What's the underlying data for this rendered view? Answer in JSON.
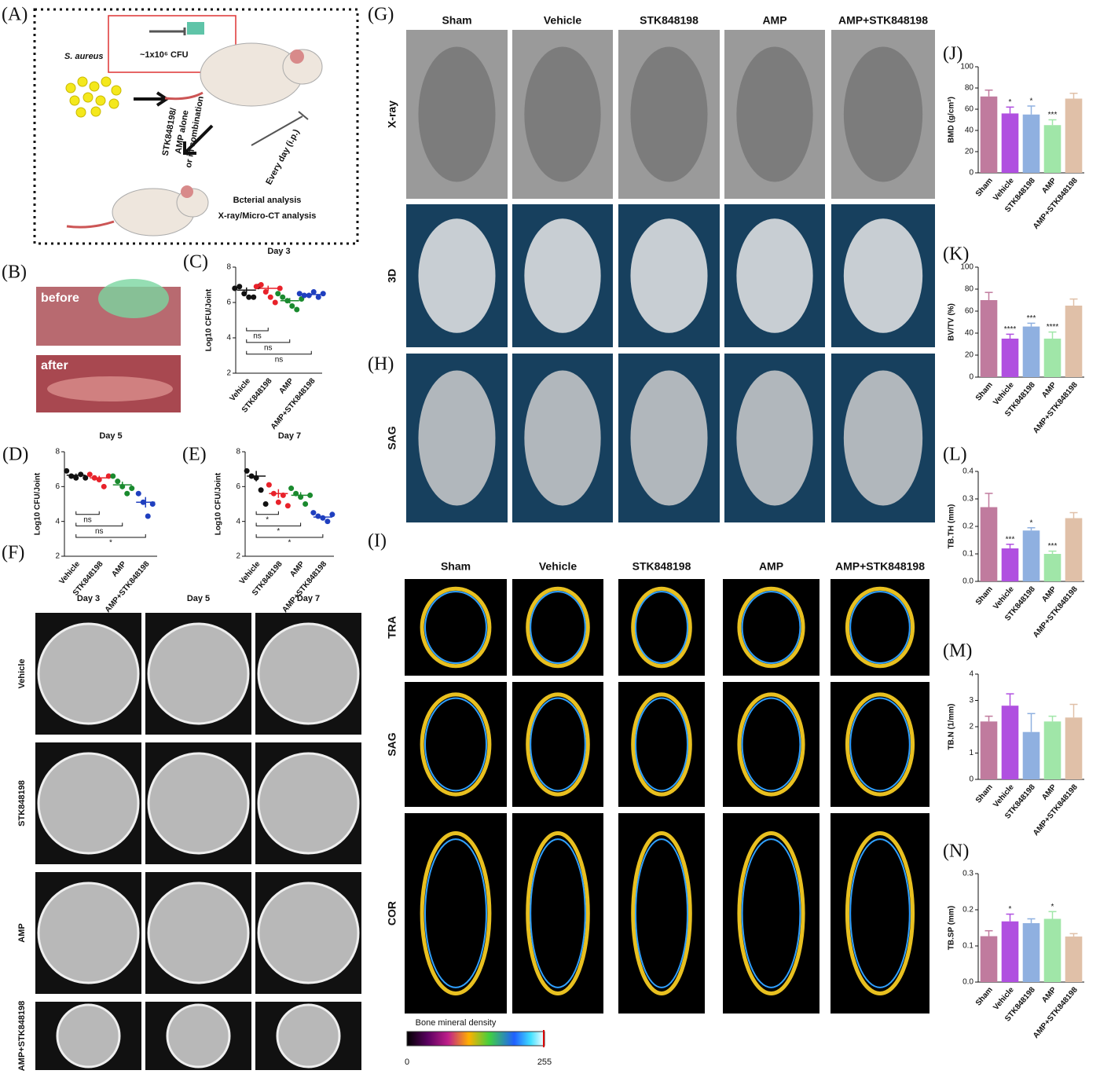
{
  "schematic": {
    "label": "(A)",
    "organism": "S. aureus",
    "dose": "~1x10⁶ CFU",
    "treatment": [
      "STK848198/",
      "AMP alone",
      "or in combination"
    ],
    "schedule": "Every day (i.p.)",
    "analysis": [
      "Bcterial analysis",
      "X-ray/Micro-CT analysis"
    ]
  },
  "wound_photos": {
    "label": "(B)",
    "photos": [
      "before",
      "after"
    ]
  },
  "plates": {
    "label": "(F)",
    "columns": [
      "Day 3",
      "Day 5",
      "Day 7"
    ],
    "rows": [
      "Vehicle",
      "STK848198",
      "AMP",
      "AMP+STK848198"
    ]
  },
  "imaging_g": {
    "labels": [
      "(G)",
      "(H)"
    ],
    "columns": [
      "Sham",
      "Vehicle",
      "STK848198",
      "AMP",
      "AMP+STK848198"
    ],
    "rows": [
      "X-ray",
      "3D",
      "SAG"
    ]
  },
  "imaging_i": {
    "label": "(I)",
    "columns": [
      "Sham",
      "Vehicle",
      "STK848198",
      "AMP",
      "AMP+STK848198"
    ],
    "rows": [
      "TRA",
      "SAG",
      "COR"
    ],
    "colorbar": {
      "title": "Bone mineral density",
      "min": 0,
      "max": 255
    }
  },
  "chart_data": [
    {
      "type": "dot",
      "panel": "(C)",
      "title": "Day 3",
      "ylabel": "Log10 CFU/Joint",
      "categories": [
        "Vehicle",
        "STK848198",
        "AMP",
        "AMP+STK848198"
      ],
      "colors": [
        "#111111",
        "#e8222a",
        "#1a8a2e",
        "#1f3fbf"
      ],
      "points": [
        [
          6.8,
          6.9,
          6.5,
          6.3,
          6.3,
          6.9
        ],
        [
          6.9,
          7.0,
          6.6,
          6.3,
          6.0,
          6.8
        ],
        [
          6.5,
          6.3,
          6.1,
          5.8,
          5.6,
          6.2
        ],
        [
          6.5,
          6.4,
          6.4,
          6.6,
          6.3,
          6.5
        ]
      ],
      "means": [
        6.7,
        6.8,
        6.1,
        6.45
      ],
      "sem": [
        0.15,
        0.15,
        0.15,
        0.05
      ],
      "ylim": [
        2,
        8
      ],
      "yticks": [
        2,
        4,
        6,
        8
      ],
      "comparisons": [
        "ns",
        "ns",
        "ns"
      ]
    },
    {
      "type": "dot",
      "panel": "(D)",
      "title": "Day 5",
      "ylabel": "Log10 CFU/Joint",
      "categories": [
        "Vehicle",
        "STK848198",
        "AMP",
        "AMP+STK848198"
      ],
      "colors": [
        "#111111",
        "#e8222a",
        "#1a8a2e",
        "#1f3fbf"
      ],
      "points": [
        [
          6.9,
          6.6,
          6.5,
          6.7,
          6.5
        ],
        [
          6.7,
          6.5,
          6.4,
          6.0,
          6.6
        ],
        [
          6.6,
          6.3,
          6.0,
          5.6,
          5.9
        ],
        [
          5.6,
          5.1,
          4.3,
          5.0
        ]
      ],
      "means": [
        6.65,
        6.5,
        6.1,
        5.1
      ],
      "sem": [
        0.1,
        0.12,
        0.18,
        0.3
      ],
      "ylim": [
        2,
        8
      ],
      "yticks": [
        2,
        4,
        6,
        8
      ],
      "comparisons": [
        "ns",
        "ns",
        "*"
      ]
    },
    {
      "type": "dot",
      "panel": "(E)",
      "title": "Day 7",
      "ylabel": "Log10 CFU/Joint",
      "categories": [
        "Vehicle",
        "STK848198",
        "AMP",
        "AMP+STK848198"
      ],
      "colors": [
        "#111111",
        "#e8222a",
        "#1a8a2e",
        "#1f3fbf"
      ],
      "points": [
        [
          6.9,
          6.6,
          6.5,
          5.8,
          5.0
        ],
        [
          6.1,
          5.6,
          5.1,
          5.5,
          4.9
        ],
        [
          5.9,
          5.6,
          5.4,
          5.0,
          5.5
        ],
        [
          4.5,
          4.3,
          4.2,
          4.0,
          4.4
        ]
      ],
      "means": [
        6.6,
        5.6,
        5.5,
        4.25
      ],
      "sem": [
        0.3,
        0.25,
        0.18,
        0.1
      ],
      "ylim": [
        2,
        8
      ],
      "yticks": [
        2,
        4,
        6,
        8
      ],
      "comparisons": [
        "*",
        "*",
        "*"
      ]
    },
    {
      "type": "bar",
      "panel": "(J)",
      "ylabel": "BMD (g/cm³)",
      "categories": [
        "Sham",
        "Vehicle",
        "STK848198",
        "AMP",
        "AMP+STK848198"
      ],
      "colors": [
        "#c07b9e",
        "#b050e0",
        "#8fb0e0",
        "#a0e6a8",
        "#e0c0a8"
      ],
      "values": [
        72,
        56,
        55,
        45,
        70
      ],
      "errors": [
        6,
        6,
        8,
        5,
        5
      ],
      "significance": [
        null,
        "*",
        "*",
        "***",
        null
      ],
      "ylim": [
        0,
        100
      ],
      "yticks": [
        0,
        20,
        40,
        60,
        80,
        100
      ]
    },
    {
      "type": "bar",
      "panel": "(K)",
      "ylabel": "BV/TV (%)",
      "categories": [
        "Sham",
        "Vehicle",
        "STK848198",
        "AMP",
        "AMP+STK848198"
      ],
      "colors": [
        "#c07b9e",
        "#b050e0",
        "#8fb0e0",
        "#a0e6a8",
        "#e0c0a8"
      ],
      "values": [
        70,
        35,
        46,
        35,
        65
      ],
      "errors": [
        7,
        4,
        3,
        6,
        6
      ],
      "significance": [
        null,
        "****",
        "***",
        "****",
        null
      ],
      "ylim": [
        0,
        100
      ],
      "yticks": [
        0,
        20,
        40,
        60,
        80,
        100
      ]
    },
    {
      "type": "bar",
      "panel": "(L)",
      "ylabel": "TB.TH (mm)",
      "categories": [
        "Sham",
        "Vehicle",
        "STK848198",
        "AMP",
        "AMP+STK848198"
      ],
      "colors": [
        "#c07b9e",
        "#b050e0",
        "#8fb0e0",
        "#a0e6a8",
        "#e0c0a8"
      ],
      "values": [
        0.27,
        0.12,
        0.185,
        0.1,
        0.23
      ],
      "errors": [
        0.05,
        0.015,
        0.01,
        0.01,
        0.02
      ],
      "significance": [
        null,
        "***",
        "*",
        "***",
        null
      ],
      "ylim": [
        0,
        0.4
      ],
      "yticks": [
        {
          "value": 0,
          "label": "0.0"
        },
        0.1,
        0.2,
        0.3,
        0.4
      ]
    },
    {
      "type": "bar",
      "panel": "(M)",
      "ylabel": "TB.N (1/mm)",
      "categories": [
        "Sham",
        "Vehicle",
        "STK848198",
        "AMP",
        "AMP+STK848198"
      ],
      "colors": [
        "#c07b9e",
        "#b050e0",
        "#8fb0e0",
        "#a0e6a8",
        "#e0c0a8"
      ],
      "values": [
        2.2,
        2.8,
        1.8,
        2.2,
        2.35
      ],
      "errors": [
        0.2,
        0.45,
        0.7,
        0.2,
        0.5
      ],
      "ylim": [
        0,
        4
      ],
      "yticks": [
        0,
        1,
        2,
        3,
        4
      ]
    },
    {
      "type": "bar",
      "panel": "(N)",
      "ylabel": "TB.SP (mm)",
      "categories": [
        "Sham",
        "Vehicle",
        "STK848198",
        "AMP",
        "AMP+STK848198"
      ],
      "colors": [
        "#c07b9e",
        "#b050e0",
        "#8fb0e0",
        "#a0e6a8",
        "#e0c0a8"
      ],
      "values": [
        0.127,
        0.168,
        0.163,
        0.175,
        0.126
      ],
      "errors": [
        0.015,
        0.02,
        0.012,
        0.02,
        0.008
      ],
      "significance": [
        null,
        "*",
        null,
        "*",
        null
      ],
      "ylim": [
        0,
        0.3
      ],
      "yticks": [
        {
          "value": 0,
          "label": "0.0"
        },
        0.1,
        0.2,
        0.3
      ]
    }
  ]
}
